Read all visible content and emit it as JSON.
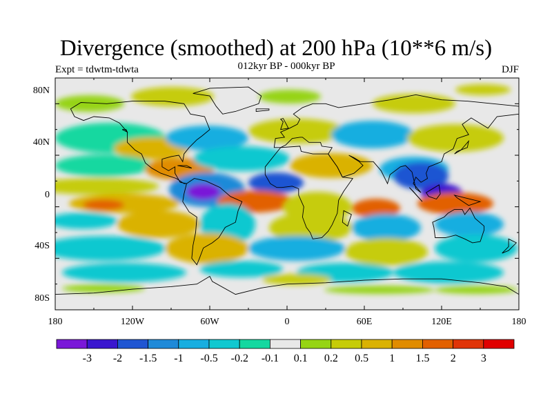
{
  "title": "Divergence (smoothed) at 200 hPa (10**6 m/s)",
  "subtitle": "012kyr BP - 000kyr BP",
  "experiment": "Expt = tdwtm-tdwta",
  "season": "DJF",
  "y_axis_labels": [
    "80N",
    "40N",
    "0",
    "40S",
    "80S"
  ],
  "x_axis_labels": [
    "180",
    "120W",
    "60W",
    "0",
    "60E",
    "120E",
    "180"
  ],
  "colorbar": {
    "labels": [
      "-3",
      "-2",
      "-1.5",
      "-1",
      "-0.5",
      "-0.2",
      "-0.1",
      "0.1",
      "0.2",
      "0.5",
      "1",
      "1.5",
      "2",
      "3"
    ],
    "colors": [
      "#7a18d8",
      "#3a16cf",
      "#1f55d2",
      "#1f8ad8",
      "#18aee0",
      "#10c8d0",
      "#14d8a0",
      "#e8e8e8",
      "#96d414",
      "#c6cc08",
      "#dab202",
      "#e08c00",
      "#e26000",
      "#e03408",
      "#e00000"
    ]
  },
  "colors": {
    "ocean_neutral": "#e8e8e8",
    "coastline": "#000000"
  }
}
